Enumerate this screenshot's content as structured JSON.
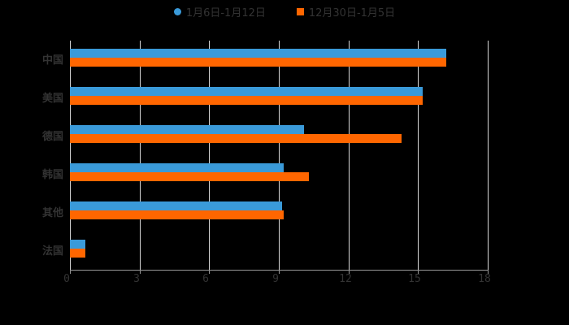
{
  "chart_data": {
    "type": "bar",
    "orientation": "horizontal",
    "title": "",
    "xlabel": "",
    "ylabel": "",
    "xlim": [
      0,
      18
    ],
    "x_ticks": [
      "0",
      "3",
      "6",
      "9",
      "12",
      "15",
      "18"
    ],
    "grid": true,
    "legend_position": "top",
    "categories": [
      "中国",
      "美国",
      "德国",
      "韩国",
      "其他",
      "法国"
    ],
    "series": [
      {
        "name": "1月6日-1月12日",
        "color": "#3a9ad9",
        "values": [
          16.2,
          15.2,
          10.1,
          9.2,
          9.15,
          0.67
        ]
      },
      {
        "name": "12月30日-1月5日",
        "color": "#ff6600",
        "values": [
          16.2,
          15.2,
          14.3,
          10.3,
          9.2,
          0.67
        ]
      }
    ]
  }
}
